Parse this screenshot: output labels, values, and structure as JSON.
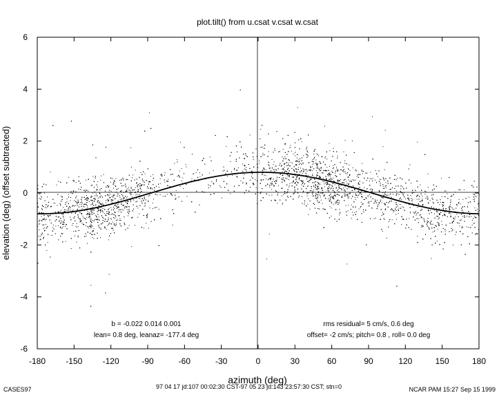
{
  "chart_data": {
    "type": "scatter",
    "title": "plot.tilt() from u.csat v.csat w.csat",
    "xlabel": "azimuth (deg)",
    "ylabel": "elevation (deg)  (offset subtracted)",
    "xlim": [
      -180,
      180
    ],
    "ylim": [
      -6,
      6
    ],
    "xticks": [
      -180,
      -150,
      -120,
      -90,
      -60,
      -30,
      0,
      30,
      60,
      90,
      120,
      150,
      180
    ],
    "yticks": [
      -6,
      -4,
      -2,
      0,
      2,
      4,
      6
    ],
    "grid": false,
    "reference_lines": {
      "x": 0,
      "y": 0
    },
    "fit_curve": {
      "type": "sinusoid",
      "amplitude_deg": 0.8,
      "peak_azimuth_deg": 2.6
    },
    "annotations_left": [
      "b = -0.022  0.014  0.001",
      "lean= 0.8 deg, leanaz= -177.4 deg"
    ],
    "annotations_right": [
      "rms residual= 5 cm/s, 0.6 deg",
      "offset= -2 cm/s; pitch=  0.8 , roll=  0.0 deg"
    ],
    "scatter": {
      "point_count": 7000,
      "spread_deg": 0.55,
      "azimuth_density": [
        [
          -180,
          0.6
        ],
        [
          -170,
          0.25
        ],
        [
          -155,
          0.55
        ],
        [
          -140,
          1.0
        ],
        [
          -120,
          0.9
        ],
        [
          -100,
          0.55
        ],
        [
          -80,
          0.25
        ],
        [
          -60,
          0.15
        ],
        [
          -30,
          0.12
        ],
        [
          0,
          0.35
        ],
        [
          20,
          0.8
        ],
        [
          40,
          1.0
        ],
        [
          60,
          0.95
        ],
        [
          80,
          0.55
        ],
        [
          100,
          0.45
        ],
        [
          120,
          0.5
        ],
        [
          140,
          0.6
        ],
        [
          160,
          0.4
        ],
        [
          170,
          0.25
        ],
        [
          180,
          0.6
        ]
      ]
    }
  },
  "footer": {
    "left": "CASES97",
    "center": "97 04 17 jd:107 00:02:30 CST-97 05 23 jd:143 23:57:30 CST; stn=0",
    "right": "NCAR PAM 15:27 Sep 15 1999"
  }
}
